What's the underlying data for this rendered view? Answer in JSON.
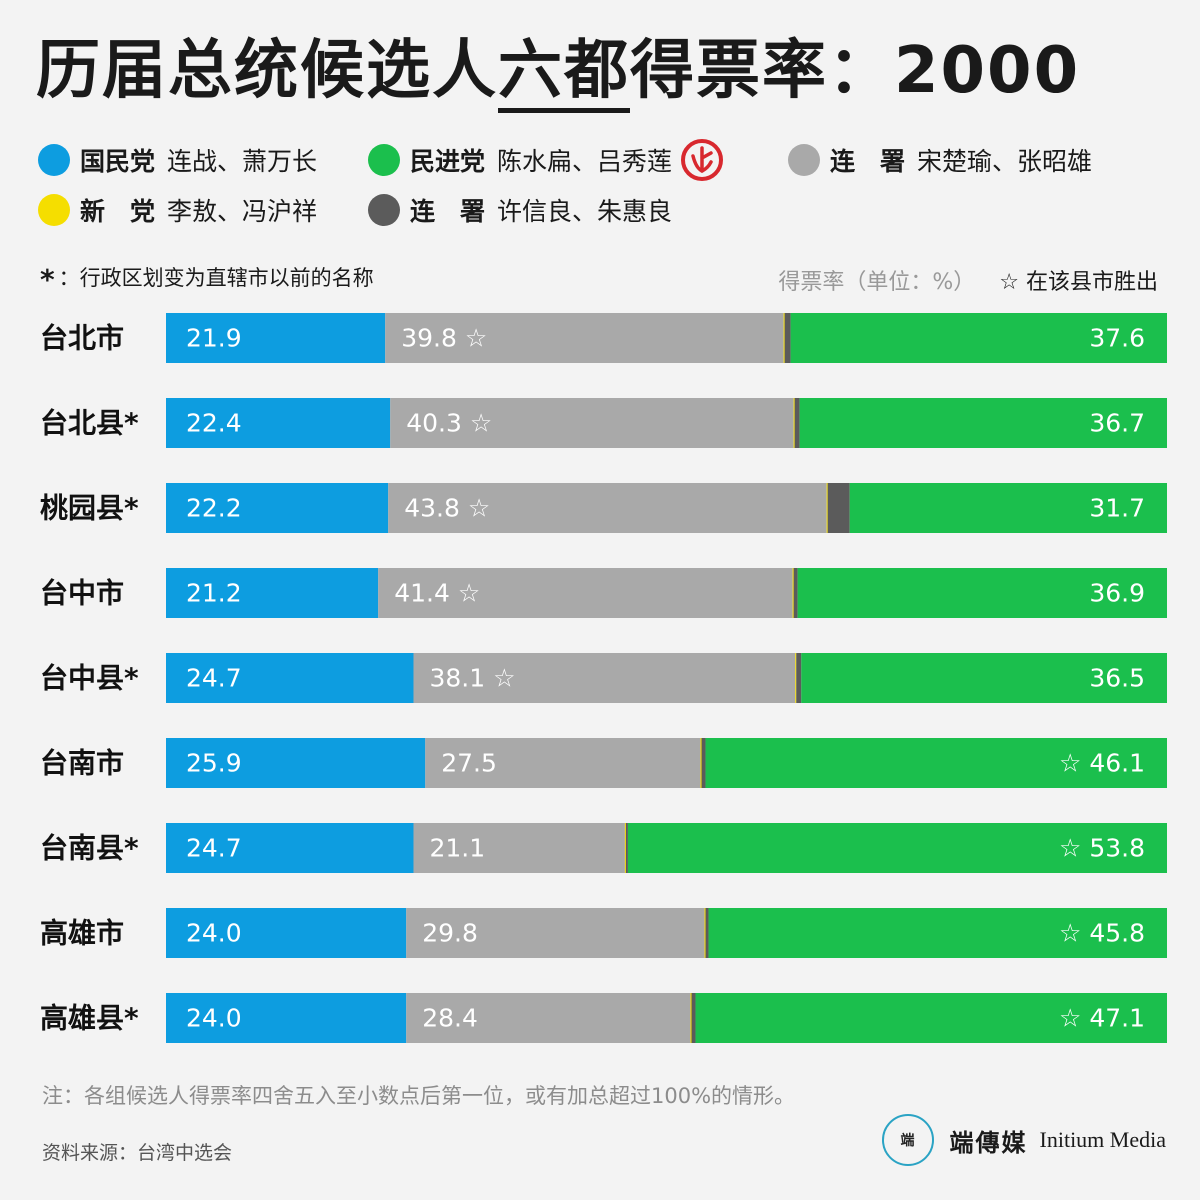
{
  "title": {
    "part1": "历届总统候选人",
    "part2": "六都",
    "part3": "得票率：2000"
  },
  "legend": [
    {
      "party": "国民党",
      "names": "连战、萧万长",
      "color": "#0d9de0"
    },
    {
      "party": "民进党",
      "names": "陈水扁、吕秀莲",
      "color": "#1bbf4d"
    },
    {
      "party": "连　署",
      "names": "宋楚瑜、张昭雄",
      "color": "#a9a9a9"
    },
    {
      "party": "新　党",
      "names": "李敖、冯沪祥",
      "color": "#f5de00"
    },
    {
      "party": "连　署",
      "names": "许信良、朱惠良",
      "color": "#5b5b5b"
    }
  ],
  "vote_icon": "ballot-stamp-icon",
  "notes": {
    "asterisk": "*",
    "asterisk_text": "：行政区划变为直辖市以前的名称",
    "unit": "得票率（单位：%）",
    "star_text": "☆ 在该县市胜出"
  },
  "chart_data": {
    "type": "bar",
    "orientation": "horizontal",
    "stacked": true,
    "categories": [
      "台北市",
      "台北县*",
      "桃园县*",
      "台中市",
      "台中县*",
      "台南市",
      "台南县*",
      "高雄市",
      "高雄县*"
    ],
    "series": [
      {
        "name": "国民党",
        "color": "#0d9de0",
        "values": [
          21.9,
          22.4,
          22.2,
          21.2,
          24.7,
          25.9,
          24.7,
          24.0,
          24.0
        ]
      },
      {
        "name": "连　署",
        "color": "#a9a9a9",
        "values": [
          39.8,
          40.3,
          43.8,
          41.4,
          38.1,
          27.5,
          21.1,
          29.8,
          28.4
        ]
      },
      {
        "name": "新　党",
        "color": "#f5de00",
        "values": [
          0.1,
          0.1,
          0.1,
          0.1,
          0.1,
          0.1,
          0.1,
          0.1,
          0.1
        ]
      },
      {
        "name": "连　署",
        "color": "#5b5b5b",
        "values": [
          0.6,
          0.5,
          2.2,
          0.4,
          0.5,
          0.4,
          0.2,
          0.3,
          0.4
        ]
      },
      {
        "name": "民进党",
        "color": "#1bbf4d",
        "values": [
          37.6,
          36.7,
          31.7,
          36.9,
          36.5,
          46.1,
          53.8,
          45.8,
          47.1
        ]
      }
    ],
    "labels": [
      [
        "21.9",
        "39.8",
        "37.6"
      ],
      [
        "22.4",
        "40.3",
        "36.7"
      ],
      [
        "22.2",
        "43.8",
        "31.7"
      ],
      [
        "21.2",
        "41.4",
        "36.9"
      ],
      [
        "24.7",
        "38.1",
        "36.5"
      ],
      [
        "25.9",
        "27.5",
        "46.1"
      ],
      [
        "24.7",
        "21.1",
        "53.8"
      ],
      [
        "24.0",
        "29.8",
        "45.8"
      ],
      [
        "24.0",
        "28.4",
        "47.1"
      ]
    ],
    "winner": [
      "连　署",
      "连　署",
      "连　署",
      "连　署",
      "连　署",
      "民进党",
      "民进党",
      "民进党",
      "民进党"
    ],
    "star": "☆"
  },
  "footnote": "注：各组候选人得票率四舍五入至小数点后第一位，或有加总超过100%的情形。",
  "source": "资料来源：台湾中选会",
  "brand": {
    "mark": "端",
    "name_cn": "端傳媒",
    "name_en": "Initium Media"
  }
}
